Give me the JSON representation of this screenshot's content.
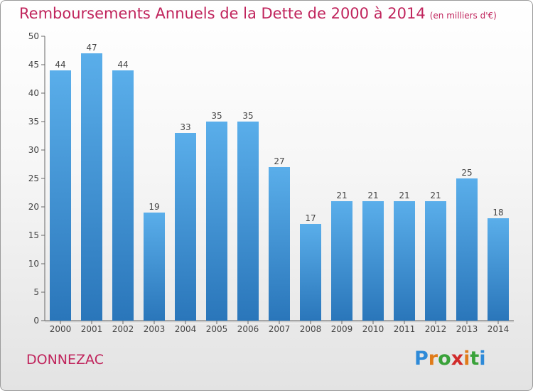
{
  "title": "Remboursements Annuels de la Dette de 2000 à 2014",
  "subtitle": "(en milliers d'€)",
  "commune": "DONNEZAC",
  "logo": {
    "letters": [
      "P",
      "r",
      "o",
      "x",
      "i",
      "t",
      "i"
    ],
    "colors": [
      "#2e8ad8",
      "#e07b1a",
      "#3aa23a",
      "#d12b2b",
      "#e07b1a",
      "#3aa23a",
      "#2e8ad8"
    ]
  },
  "colors": {
    "title": "#c0245c",
    "bar_top": "#5aaeea",
    "bar_bottom": "#2a76ba"
  },
  "chart_data": {
    "type": "bar",
    "categories": [
      "2000",
      "2001",
      "2002",
      "2003",
      "2004",
      "2005",
      "2006",
      "2007",
      "2008",
      "2009",
      "2010",
      "2011",
      "2012",
      "2013",
      "2014"
    ],
    "values": [
      44,
      47,
      44,
      19,
      33,
      35,
      35,
      27,
      17,
      21,
      21,
      21,
      21,
      25,
      18
    ],
    "ylim": [
      0,
      50
    ],
    "yticks": [
      0,
      5,
      10,
      15,
      20,
      25,
      30,
      35,
      40,
      45,
      50
    ],
    "grid": false
  }
}
